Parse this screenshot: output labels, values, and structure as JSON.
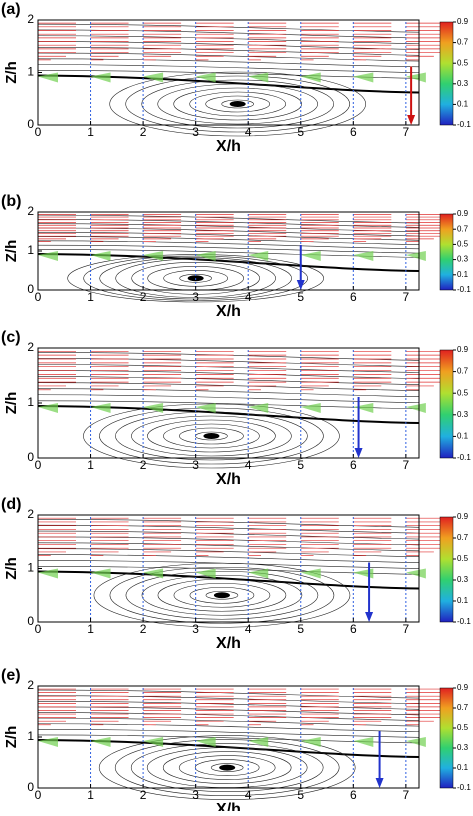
{
  "chart_data": [
    {
      "type": "flow",
      "panel": "(a)",
      "xlabel": "X/h",
      "ylabel": "Z/h",
      "xlim": [
        0,
        7.25
      ],
      "ylim": [
        0,
        2
      ],
      "xticks": [
        0,
        1,
        2,
        3,
        4,
        5,
        6,
        7
      ],
      "yticks": [
        0,
        1,
        2
      ],
      "clim": [
        -0.1,
        0.9
      ],
      "cticks": [
        0.9,
        0.7,
        0.5,
        0.3,
        0.1,
        -0.1
      ],
      "vortex": {
        "x": 3.8,
        "z": 0.4
      },
      "reattachment_x": 7.1,
      "arrow_color": "#cc1111"
    },
    {
      "type": "flow",
      "panel": "(b)",
      "xlabel": "X/h",
      "ylabel": "Z/h",
      "xlim": [
        0,
        7.25
      ],
      "ylim": [
        0,
        2
      ],
      "xticks": [
        0,
        1,
        2,
        3,
        4,
        5,
        6,
        7
      ],
      "yticks": [
        0,
        1,
        2
      ],
      "clim": [
        -0.1,
        0.9
      ],
      "cticks": [
        0.9,
        0.7,
        0.5,
        0.3,
        0.1,
        -0.1
      ],
      "vortex": {
        "x": 3.0,
        "z": 0.3
      },
      "reattachment_x": 5.0,
      "arrow_color": "#2233cc"
    },
    {
      "type": "flow",
      "panel": "(c)",
      "xlabel": "X/h",
      "ylabel": "Z/h",
      "xlim": [
        0,
        7.25
      ],
      "ylim": [
        0,
        2
      ],
      "xticks": [
        0,
        1,
        2,
        3,
        4,
        5,
        6,
        7
      ],
      "yticks": [
        0,
        1,
        2
      ],
      "clim": [
        -0.1,
        0.9
      ],
      "cticks": [
        0.9,
        0.7,
        0.5,
        0.3,
        0.1,
        -0.1
      ],
      "vortex": {
        "x": 3.3,
        "z": 0.4
      },
      "reattachment_x": 6.1,
      "arrow_color": "#2233cc"
    },
    {
      "type": "flow",
      "panel": "(d)",
      "xlabel": "X/h",
      "ylabel": "Z/h",
      "xlim": [
        0,
        7.25
      ],
      "ylim": [
        0,
        2
      ],
      "xticks": [
        0,
        1,
        2,
        3,
        4,
        5,
        6,
        7
      ],
      "yticks": [
        0,
        1,
        2
      ],
      "clim": [
        -0.1,
        0.9
      ],
      "cticks": [
        0.9,
        0.7,
        0.5,
        0.3,
        0.1,
        -0.1
      ],
      "vortex": {
        "x": 3.5,
        "z": 0.5
      },
      "reattachment_x": 6.3,
      "arrow_color": "#2233cc"
    },
    {
      "type": "flow",
      "panel": "(e)",
      "xlabel": "X/h",
      "ylabel": "Z/h",
      "xlim": [
        0,
        7.25
      ],
      "ylim": [
        0,
        2
      ],
      "xticks": [
        0,
        1,
        2,
        3,
        4,
        5,
        6,
        7
      ],
      "yticks": [
        0,
        1,
        2
      ],
      "clim": [
        -0.1,
        0.9
      ],
      "cticks": [
        0.9,
        0.7,
        0.5,
        0.3,
        0.1,
        -0.1
      ],
      "vortex": {
        "x": 3.6,
        "z": 0.4
      },
      "reattachment_x": 6.5,
      "arrow_color": "#2233cc"
    }
  ]
}
